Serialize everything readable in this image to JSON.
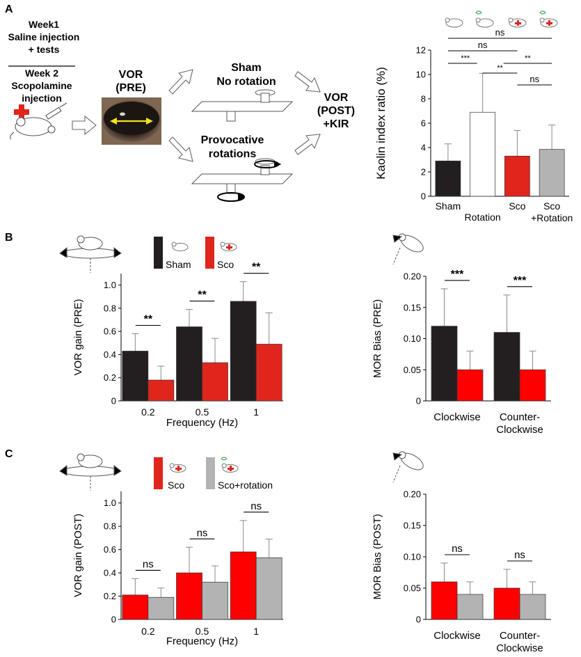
{
  "panels": {
    "a": "A",
    "b": "B",
    "c": "C"
  },
  "schematic": {
    "week1": [
      "Week1",
      "Saline injection",
      "+ tests"
    ],
    "week2": [
      "Week 2",
      "Scopolamine",
      "injection"
    ],
    "vor_pre": [
      "VOR",
      "(PRE)"
    ],
    "sham": [
      "Sham",
      "No rotation"
    ],
    "provocative": [
      "Provocative",
      "rotations"
    ],
    "vor_post": [
      "VOR",
      "(POST)",
      "+KIR"
    ]
  },
  "legend_b": {
    "sham": "Sham",
    "sco": "Sco"
  },
  "legend_c": {
    "sco": "Sco",
    "sco_rotation": "Sco+rotation"
  },
  "colors": {
    "black": "#231f20",
    "white": "#ffffff",
    "red": "#e0251c",
    "red_bright": "#ff0000",
    "gray": "#b3b3b3",
    "error": "#8a8a8a"
  },
  "chart_data": [
    {
      "id": "kaolin",
      "type": "bar",
      "title": "",
      "ylabel": "Kaolin index ratio (%)",
      "ylim": [
        0,
        12
      ],
      "yticks": [
        "0",
        "2",
        "4",
        "6",
        "8",
        "10",
        "12"
      ],
      "categories": [
        "Sham",
        "Rotation",
        "Sco",
        "Sco\n+Rotation"
      ],
      "values": [
        2.9,
        6.9,
        3.3,
        3.85
      ],
      "errors": [
        1.4,
        3.2,
        2.1,
        2.0
      ],
      "bar_colors": [
        "#231f20",
        "#ffffff",
        "#e0251c",
        "#b3b3b3"
      ],
      "significance": [
        {
          "pair": [
            0,
            3
          ],
          "label": "ns"
        },
        {
          "pair": [
            0,
            2
          ],
          "label": "ns"
        },
        {
          "pair": [
            0,
            1
          ],
          "label": "***"
        },
        {
          "pair": [
            1,
            3
          ],
          "label": "**"
        },
        {
          "pair": [
            1,
            2
          ],
          "label": "**"
        },
        {
          "pair": [
            2,
            3
          ],
          "label": "ns"
        }
      ]
    },
    {
      "id": "vor_pre",
      "type": "bar",
      "ylabel": "VOR gain (PRE)",
      "xlabel": "Frequency (Hz)",
      "ylim": [
        0,
        1.1
      ],
      "yticks": [
        "0",
        "0.2",
        "0.4",
        "0.6",
        "0.8",
        "1.0"
      ],
      "categories": [
        "0.2",
        "0.5",
        "1"
      ],
      "series": [
        {
          "name": "Sham",
          "values": [
            0.43,
            0.64,
            0.86
          ],
          "errors": [
            0.15,
            0.15,
            0.17
          ],
          "color": "#231f20"
        },
        {
          "name": "Sco",
          "values": [
            0.18,
            0.33,
            0.49
          ],
          "errors": [
            0.12,
            0.21,
            0.27
          ],
          "color": "#e0251c"
        }
      ],
      "significance": [
        "**",
        "**",
        "**"
      ]
    },
    {
      "id": "mor_pre",
      "type": "bar",
      "ylabel": "MOR Bias (PRE)",
      "ylim": [
        0,
        0.2
      ],
      "yticks": [
        "0",
        "0.05",
        "0.10",
        "0.15",
        "0.20"
      ],
      "categories": [
        "Clockwise",
        "Counter-\nClockwise"
      ],
      "series": [
        {
          "name": "Sham",
          "values": [
            0.12,
            0.11
          ],
          "errors": [
            0.06,
            0.06
          ],
          "color": "#231f20"
        },
        {
          "name": "Sco",
          "values": [
            0.05,
            0.05
          ],
          "errors": [
            0.03,
            0.03
          ],
          "color": "#ff0000"
        }
      ],
      "significance": [
        "***",
        "***"
      ]
    },
    {
      "id": "vor_post",
      "type": "bar",
      "ylabel": "VOR gain (POST)",
      "xlabel": "Frequency (Hz)",
      "ylim": [
        0,
        1.1
      ],
      "yticks": [
        "0",
        "0.2",
        "0.4",
        "0.6",
        "0.8",
        "1.0"
      ],
      "categories": [
        "0.2",
        "0.5",
        "1"
      ],
      "series": [
        {
          "name": "Sco",
          "values": [
            0.21,
            0.4,
            0.58
          ],
          "errors": [
            0.14,
            0.22,
            0.27
          ],
          "color": "#ff0000"
        },
        {
          "name": "Sco+rotation",
          "values": [
            0.19,
            0.32,
            0.53
          ],
          "errors": [
            0.08,
            0.14,
            0.16
          ],
          "color": "#b3b3b3"
        }
      ],
      "significance": [
        "ns",
        "ns",
        "ns"
      ]
    },
    {
      "id": "mor_post",
      "type": "bar",
      "ylabel": "MOR Bias (POST)",
      "ylim": [
        0,
        0.2
      ],
      "yticks": [
        "0",
        "0.05",
        "0.10",
        "0.15",
        "0.20"
      ],
      "categories": [
        "Clockwise",
        "Counter-\nClockwise"
      ],
      "series": [
        {
          "name": "Sco",
          "values": [
            0.06,
            0.05
          ],
          "errors": [
            0.03,
            0.03
          ],
          "color": "#ff0000"
        },
        {
          "name": "Sco+rotation",
          "values": [
            0.04,
            0.04
          ],
          "errors": [
            0.02,
            0.02
          ],
          "color": "#b3b3b3"
        }
      ],
      "significance": [
        "ns",
        "ns"
      ]
    }
  ]
}
